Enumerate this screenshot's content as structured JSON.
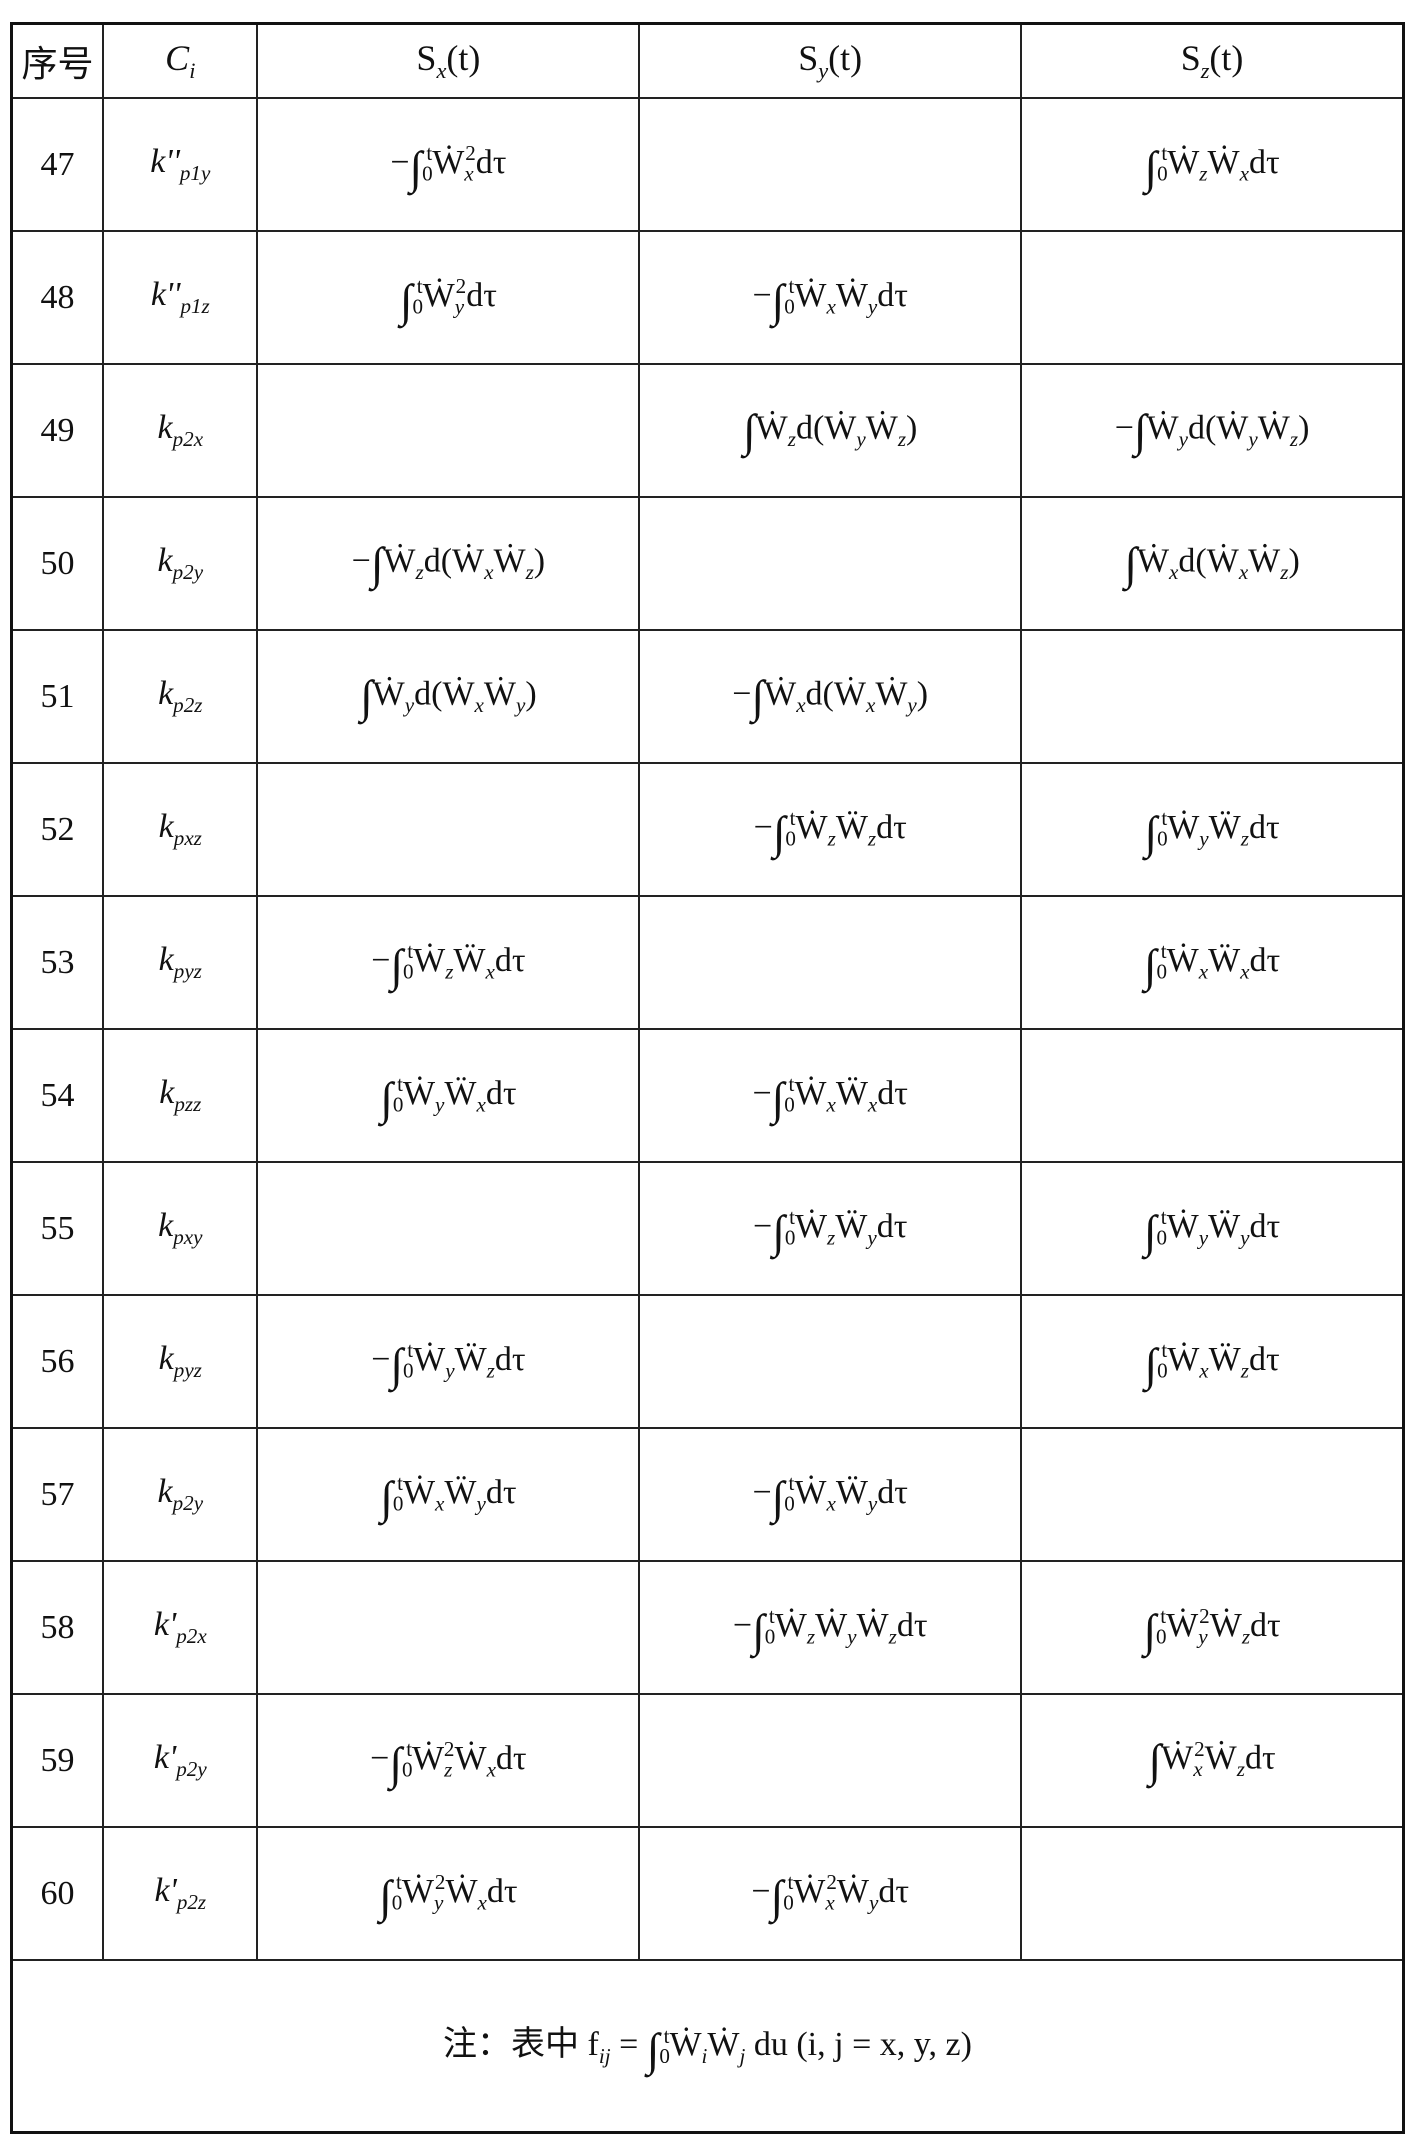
{
  "header": [
    "序号",
    "C_i",
    "S_x(t)",
    "S_y(t)",
    "S_z(t)"
  ],
  "rows": [
    {
      "no": "47",
      "coef": "k''_p_1_y",
      "sx": "−∫₀ᵗẆ_x^2dτ",
      "sy": "",
      "sz": "∫₀ᵗẆ_zẆ_xdτ"
    },
    {
      "no": "48",
      "coef": "k''_p_1_z",
      "sx": "∫₀ᵗẆ_y^2dτ",
      "sy": "−∫₀ᵗẆ_xẆ_ydτ",
      "sz": ""
    },
    {
      "no": "49",
      "coef": "k_p_2_x",
      "sx": "",
      "sy": "∫Ẇ_zd(Ẇ_yẆ_z)",
      "sz": "−∫Ẇ_yd(Ẇ_yẆ_z)"
    },
    {
      "no": "50",
      "coef": "k_p_2_y",
      "sx": "−∫Ẇ_zd(Ẇ_xẆ_z)",
      "sy": "",
      "sz": "∫Ẇ_xd(Ẇ_xẆ_z)"
    },
    {
      "no": "51",
      "coef": "k_p_2_z",
      "sx": "∫Ẇ_yd(Ẇ_xẆ_y)",
      "sy": "−∫Ẇ_xd(Ẇ_xẆ_y)",
      "sz": ""
    },
    {
      "no": "52",
      "coef": "k_p_x_z",
      "sx": "",
      "sy": "−∫₀ᵗẆ_zẄ_zdτ",
      "sz": "∫₀ᵗẆ_yẄ_zdτ"
    },
    {
      "no": "53",
      "coef": "k_p_y_z",
      "sx": "−∫₀ᵗẆ_zẄ_xdτ",
      "sy": "",
      "sz": "∫₀ᵗẆ_xẄ_xdτ"
    },
    {
      "no": "54",
      "coef": "k_p_z_z",
      "sx": "∫₀ᵗẆ_yẄ_xdτ",
      "sy": "−∫₀ᵗẆ_xẄ_xdτ",
      "sz": ""
    },
    {
      "no": "55",
      "coef": "k_p_x_y",
      "sx": "",
      "sy": "−∫₀ᵗẆ_zẄ_ydτ",
      "sz": "∫₀ᵗẆ_yẄ_ydτ"
    },
    {
      "no": "56",
      "coef": "k_p_y_z",
      "sx": "−∫₀ᵗẆ_yẄ_zdτ",
      "sy": "",
      "sz": "∫₀ᵗẆ_xẄ_zdτ"
    },
    {
      "no": "57",
      "coef": "k_p_2_y",
      "sx": "∫₀ᵗẆ_xẄ_ydτ",
      "sy": "−∫₀ᵗẆ_xẄ_ydτ",
      "sz": ""
    },
    {
      "no": "58",
      "coef": "k'_p_2_x",
      "sx": "",
      "sy": "−∫₀ᵗẆ_zẆ_yẆ_zdτ",
      "sz": "∫₀ᵗẆ_y^2Ẇ_zdτ"
    },
    {
      "no": "59",
      "coef": "k'_p_2_y",
      "sx": "−∫₀ᵗẆ_z^2Ẇ_xdτ",
      "sy": "",
      "sz": "∫Ẇ_x^2Ẇ_zdτ"
    },
    {
      "no": "60",
      "coef": "k'_p_2_z",
      "sx": "∫₀ᵗẆ_y^2Ẇ_xdτ",
      "sy": "−∫₀ᵗẆ_x^2Ẇ_ydτ",
      "sz": ""
    }
  ],
  "note": "注：表中 f_i_j = ∫₀ᵗẆ_iẆ_j du  (i, j = x, y, z)"
}
